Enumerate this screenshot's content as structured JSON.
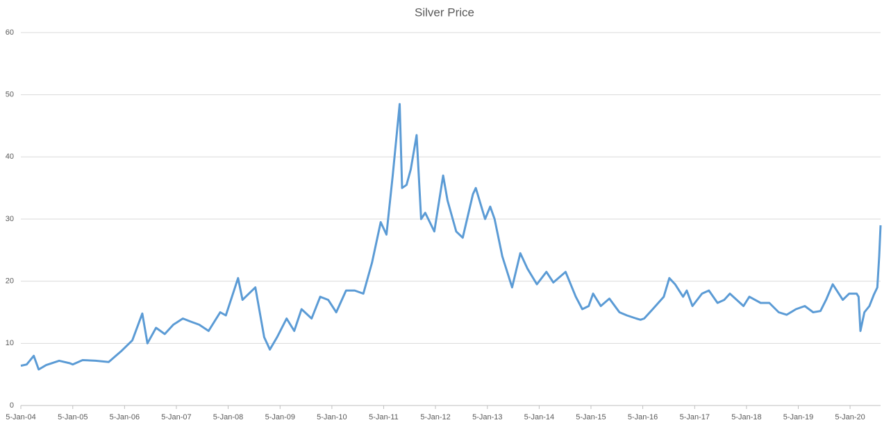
{
  "chart_data": {
    "type": "line",
    "title": "Silver Price",
    "color": "#5b9bd5",
    "grid": true,
    "x": [
      "2004-01-05",
      "2004-02-15",
      "2004-04-05",
      "2004-05-10",
      "2004-07-01",
      "2004-10-01",
      "2004-12-15",
      "2005-01-05",
      "2005-03-15",
      "2005-06-15",
      "2005-09-15",
      "2005-12-15",
      "2006-03-01",
      "2006-05-10",
      "2006-06-15",
      "2006-08-15",
      "2006-10-15",
      "2006-12-15",
      "2007-02-20",
      "2007-04-15",
      "2007-06-15",
      "2007-08-20",
      "2007-11-10",
      "2007-12-20",
      "2008-03-15",
      "2008-04-15",
      "2008-07-15",
      "2008-09-15",
      "2008-10-25",
      "2008-12-15",
      "2009-02-20",
      "2009-04-15",
      "2009-06-05",
      "2009-08-15",
      "2009-10-15",
      "2009-12-10",
      "2010-02-05",
      "2010-04-15",
      "2010-06-15",
      "2010-08-15",
      "2010-10-15",
      "2010-12-15",
      "2011-01-25",
      "2011-03-10",
      "2011-04-28",
      "2011-05-15",
      "2011-06-15",
      "2011-07-15",
      "2011-08-25",
      "2011-09-26",
      "2011-10-25",
      "2011-12-28",
      "2012-02-28",
      "2012-03-30",
      "2012-05-30",
      "2012-07-15",
      "2012-09-25",
      "2012-10-15",
      "2012-12-20",
      "2013-01-25",
      "2013-02-25",
      "2013-04-20",
      "2013-06-28",
      "2013-08-25",
      "2013-10-15",
      "2013-12-20",
      "2014-02-25",
      "2014-04-15",
      "2014-07-10",
      "2014-09-20",
      "2014-11-05",
      "2014-12-20",
      "2015-01-20",
      "2015-03-15",
      "2015-05-15",
      "2015-07-25",
      "2015-09-15",
      "2015-11-20",
      "2015-12-20",
      "2016-01-15",
      "2016-03-15",
      "2016-06-01",
      "2016-07-10",
      "2016-08-20",
      "2016-10-15",
      "2016-11-10",
      "2016-12-20",
      "2017-02-25",
      "2017-04-15",
      "2017-06-15",
      "2017-08-01",
      "2017-09-10",
      "2017-12-15",
      "2018-01-25",
      "2018-04-15",
      "2018-06-15",
      "2018-08-20",
      "2018-10-15",
      "2018-12-20",
      "2019-02-20",
      "2019-04-20",
      "2019-06-10",
      "2019-07-20",
      "2019-09-05",
      "2019-11-15",
      "2019-12-30",
      "2020-01-15",
      "2020-02-20",
      "2020-03-05",
      "2020-03-18",
      "2020-04-15",
      "2020-05-20",
      "2020-06-20",
      "2020-07-15",
      "2020-07-28",
      "2020-08-07"
    ],
    "values": [
      6.4,
      6.6,
      8.0,
      5.8,
      6.5,
      7.2,
      6.8,
      6.6,
      7.3,
      7.2,
      7.0,
      8.8,
      10.5,
      14.8,
      10.0,
      12.5,
      11.5,
      13.0,
      14.0,
      13.5,
      13.0,
      12.0,
      15.0,
      14.5,
      20.5,
      17.0,
      19.0,
      11.0,
      9.0,
      11.0,
      14.0,
      12.0,
      15.5,
      14.0,
      17.5,
      17.0,
      15.0,
      18.5,
      18.5,
      18.0,
      23.0,
      29.5,
      27.5,
      37.0,
      48.5,
      35.0,
      35.5,
      38.0,
      43.5,
      30.0,
      31.0,
      28.0,
      37.0,
      33.0,
      28.0,
      27.0,
      34.0,
      35.0,
      30.0,
      32.0,
      30.0,
      24.0,
      19.0,
      24.5,
      22.0,
      19.5,
      21.5,
      19.8,
      21.5,
      17.5,
      15.5,
      16.0,
      18.0,
      16.0,
      17.2,
      15.0,
      14.5,
      14.0,
      13.8,
      14.0,
      15.5,
      17.5,
      20.5,
      19.5,
      17.5,
      18.5,
      16.0,
      18.0,
      18.5,
      16.5,
      17.0,
      18.0,
      16.0,
      17.5,
      16.5,
      16.5,
      15.0,
      14.6,
      15.5,
      16.0,
      15.0,
      15.2,
      17.0,
      19.5,
      17.0,
      18.0,
      18.0,
      18.0,
      17.5,
      12.0,
      15.0,
      16.0,
      17.8,
      19.0,
      24.0,
      29.0
    ],
    "xlim": [
      "2004-01-05",
      "2020-08-07"
    ],
    "xticks": [
      {
        "value": "2004-01-05",
        "label": "5-Jan-04"
      },
      {
        "value": "2005-01-05",
        "label": "5-Jan-05"
      },
      {
        "value": "2006-01-05",
        "label": "5-Jan-06"
      },
      {
        "value": "2007-01-05",
        "label": "5-Jan-07"
      },
      {
        "value": "2008-01-05",
        "label": "5-Jan-08"
      },
      {
        "value": "2009-01-05",
        "label": "5-Jan-09"
      },
      {
        "value": "2010-01-05",
        "label": "5-Jan-10"
      },
      {
        "value": "2011-01-05",
        "label": "5-Jan-11"
      },
      {
        "value": "2012-01-05",
        "label": "5-Jan-12"
      },
      {
        "value": "2013-01-05",
        "label": "5-Jan-13"
      },
      {
        "value": "2014-01-05",
        "label": "5-Jan-14"
      },
      {
        "value": "2015-01-05",
        "label": "5-Jan-15"
      },
      {
        "value": "2016-01-05",
        "label": "5-Jan-16"
      },
      {
        "value": "2017-01-05",
        "label": "5-Jan-17"
      },
      {
        "value": "2018-01-05",
        "label": "5-Jan-18"
      },
      {
        "value": "2019-01-05",
        "label": "5-Jan-19"
      },
      {
        "value": "2020-01-05",
        "label": "5-Jan-20"
      }
    ],
    "ylim": [
      0,
      60
    ],
    "yticks": [
      0,
      10,
      20,
      30,
      40,
      50,
      60
    ]
  }
}
